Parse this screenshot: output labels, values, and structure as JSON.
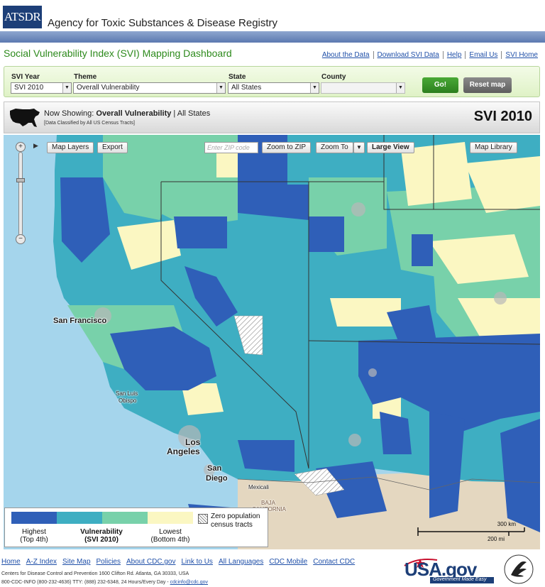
{
  "header": {
    "logo_text": "ATSDR",
    "agency_name": "Agency for Toxic Substances & Disease Registry"
  },
  "title": "Social Vulnerability Index (SVI) Mapping Dashboard",
  "top_links": [
    "About the Data",
    "Download SVI Data",
    "Help",
    "Email Us",
    "SVI Home"
  ],
  "controls": {
    "svi_year": {
      "label": "SVI Year",
      "value": "SVI 2010"
    },
    "theme": {
      "label": "Theme",
      "value": "Overall Vulnerability"
    },
    "state": {
      "label": "State",
      "value": "All States"
    },
    "county": {
      "label": "County",
      "value": ""
    },
    "go_label": "Go!",
    "reset_label": "Reset map"
  },
  "now_showing": {
    "prefix": "Now Showing:",
    "theme": "Overall Vulnerability",
    "separator": "|",
    "scope": "All States",
    "sub": "[Data Classified by All US Census Tracts]",
    "year_badge": "SVI 2010"
  },
  "map_toolbar": {
    "map_layers": "Map Layers",
    "export": "Export",
    "zip_placeholder": "Enter ZIP code",
    "zoom_to_zip": "Zoom to ZIP",
    "zoom_to": "Zoom To",
    "large_view": "Large View",
    "map_library": "Map Library"
  },
  "zoom": {
    "plus": "+",
    "minus": "−",
    "level_fraction": 0.66
  },
  "cities": {
    "sf": "San Francisco",
    "slo1": "San Luis",
    "slo2": "Obispo",
    "la1": "Los",
    "la2": "Angeles",
    "sd1": "San",
    "sd2": "Diego",
    "mexicali": "Mexicali",
    "baja1": "BAJA",
    "baja2": "CALIFORNIA"
  },
  "legend": {
    "colors": [
      "#2f5fb8",
      "#3eaec2",
      "#78d1aa",
      "#fbf7c2"
    ],
    "highest": "Highest",
    "highest_sub": "(Top 4th)",
    "vuln": "Vulnerability",
    "vuln_sub": "(SVI 2010)",
    "lowest": "Lowest",
    "lowest_sub": "(Bottom 4th)",
    "zero1": "Zero population",
    "zero2": "census tracts"
  },
  "scale": {
    "km": "300 km",
    "mi": "200 mi"
  },
  "footer": {
    "links": [
      "Home",
      "A-Z Index",
      "Site Map",
      "Policies",
      "About CDC.gov",
      "Link to Us",
      "All Languages",
      "CDC Mobile",
      "Contact CDC"
    ],
    "line1": "Centers for Disease Control and Prevention  1600 Clifton Rd. Atlanta, GA 30333, USA",
    "line2": "800-CDC-INFO (800-232-4636) TTY: (888) 232-6348, 24 Hours/Every Day - ",
    "email": "cdcinfo@cdc.gov",
    "usagov": "USA.gov",
    "usagov_tag": "Government Made Easy"
  }
}
